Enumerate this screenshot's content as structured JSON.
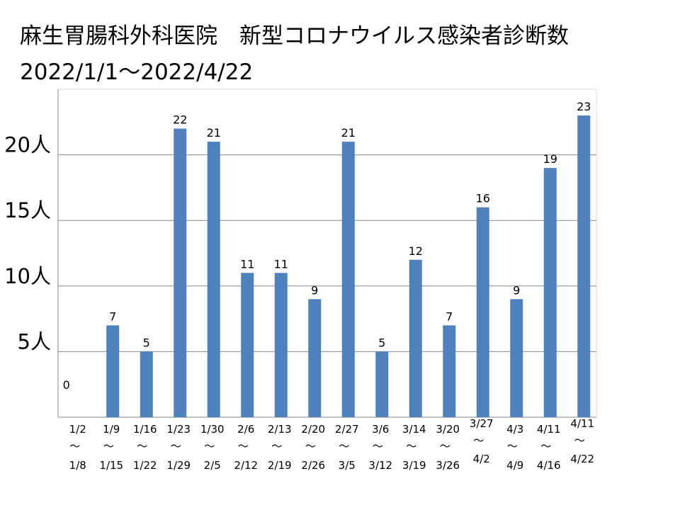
{
  "title_line1": "麻生胃腸科外科医院　新型コロナウイルス感染者診断数",
  "title_line2": "2022/1/1～2022/4/22",
  "chart_data": {
    "type": "bar",
    "categories": [
      [
        "1/2",
        "～",
        "1/8"
      ],
      [
        "1/9",
        "～",
        "1/15"
      ],
      [
        "1/16",
        "～",
        "1/22"
      ],
      [
        "1/23",
        "～",
        "1/29"
      ],
      [
        "1/30",
        "～",
        "2/5"
      ],
      [
        "2/6",
        "～",
        "2/12"
      ],
      [
        "2/13",
        "～",
        "2/19"
      ],
      [
        "2/20",
        "～",
        "2/26"
      ],
      [
        "2/27",
        "～",
        "3/5"
      ],
      [
        "3/6",
        "～",
        "3/12"
      ],
      [
        "3/14",
        "～",
        "3/19"
      ],
      [
        "3/20",
        "～",
        "3/26"
      ],
      [
        "3/27",
        "～",
        "4/2"
      ],
      [
        "4/3",
        "～",
        "4/9"
      ],
      [
        "4/11",
        "～",
        "4/16"
      ],
      [
        "4/11",
        "～",
        "4/22"
      ]
    ],
    "values": [
      0,
      7,
      5,
      22,
      21,
      11,
      11,
      9,
      21,
      5,
      12,
      7,
      16,
      9,
      19,
      23
    ],
    "yticks": [
      5,
      10,
      15,
      20
    ],
    "ytick_labels": [
      "5人",
      "10人",
      "15人",
      "20人"
    ],
    "ylim": [
      0,
      25
    ],
    "grid": true,
    "bar_color": "#4F81BD",
    "grid_color": "#868686"
  }
}
